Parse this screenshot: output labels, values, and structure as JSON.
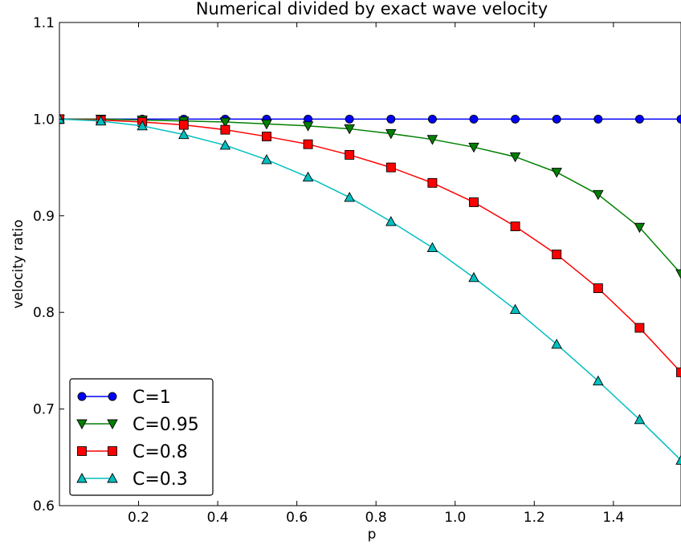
{
  "chart_data": {
    "type": "line",
    "title": "Numerical divided by exact wave velocity",
    "xlabel": "p",
    "ylabel": "velocity ratio",
    "xlim": [
      0.0,
      1.5708
    ],
    "ylim": [
      0.6,
      1.1
    ],
    "xticks": [
      0.2,
      0.4,
      0.6,
      0.8,
      1.0,
      1.2,
      1.4
    ],
    "xtick_labels": [
      "0.2",
      "0.4",
      "0.6",
      "0.8",
      "1.0",
      "1.2",
      "1.4"
    ],
    "yticks": [
      0.6,
      0.7,
      0.8,
      0.9,
      1.0,
      1.1
    ],
    "ytick_labels": [
      "0.6",
      "0.7",
      "0.8",
      "0.9",
      "1.0",
      "1.1"
    ],
    "grid": false,
    "legend_position": "lower-left",
    "x": [
      0.0,
      0.1047,
      0.2094,
      0.3142,
      0.4189,
      0.5236,
      0.6283,
      0.733,
      0.8378,
      0.9425,
      1.0472,
      1.1519,
      1.2566,
      1.3614,
      1.4661,
      1.5708
    ],
    "series": [
      {
        "name": "C=1",
        "color": "#0000ff",
        "marker": "circle",
        "values": [
          1.0,
          1.0,
          1.0,
          1.0,
          1.0,
          1.0,
          1.0,
          1.0,
          1.0,
          1.0,
          1.0,
          1.0,
          1.0,
          1.0,
          1.0,
          1.0
        ]
      },
      {
        "name": "C=0.95",
        "color": "#008000",
        "marker": "triangle-down",
        "values": [
          1.0,
          1.0,
          0.999,
          0.998,
          0.997,
          0.995,
          0.993,
          0.99,
          0.985,
          0.979,
          0.971,
          0.961,
          0.945,
          0.922,
          0.888,
          0.84
        ]
      },
      {
        "name": "C=0.8",
        "color": "#ff0000",
        "marker": "square",
        "values": [
          1.0,
          0.999,
          0.997,
          0.994,
          0.989,
          0.982,
          0.974,
          0.963,
          0.95,
          0.934,
          0.914,
          0.889,
          0.86,
          0.825,
          0.784,
          0.738
        ]
      },
      {
        "name": "C=0.3",
        "color": "#00bfbf",
        "marker": "triangle-up",
        "values": [
          1.0,
          0.998,
          0.993,
          0.984,
          0.973,
          0.958,
          0.94,
          0.919,
          0.894,
          0.867,
          0.836,
          0.803,
          0.767,
          0.729,
          0.689,
          0.647
        ]
      }
    ]
  }
}
